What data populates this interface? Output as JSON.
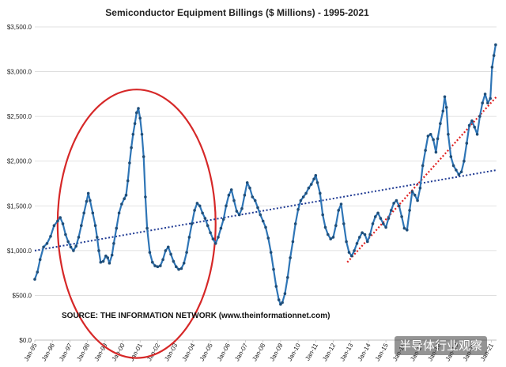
{
  "chart_data": {
    "type": "line",
    "title": "Semiconductor Equipment Billings ($ Millions) - 1995-2021",
    "source_note": "SOURCE: THE INFORMATION NETWORK (www.theinformationnet.com)",
    "watermark": "半导体行业观察",
    "ylim": [
      0,
      3500
    ],
    "y_ticks": [
      "$0.0",
      "$500.0",
      "$1,000.0",
      "$1,500.0",
      "$2,000.0",
      "$2,500.0",
      "$3,000.0",
      "$3,500.0"
    ],
    "x_ticks": [
      "Jan-95",
      "Jan-96",
      "Jan-97",
      "Jan-98",
      "Jan-99",
      "Jan-00",
      "Jan-01",
      "Jan-02",
      "Jan-03",
      "Jan-04",
      "Jan-05",
      "Jan-06",
      "Jan-07",
      "Jan-08",
      "Jan-09",
      "Jan-10",
      "Jan-11",
      "Jan-12",
      "Jan-13",
      "Jan-14",
      "Jan-15",
      "Jan-16",
      "Jan-17",
      "Jan-18",
      "Jan-19",
      "Jan-20",
      "Jan-21"
    ],
    "x_range": [
      1995.0,
      2021.3
    ],
    "grid": "horizontal",
    "colors": {
      "series": "#2e75b6",
      "marker": "#1f4e79",
      "trend_overall": "#1f3a93",
      "trend_recent": "#e02020",
      "highlight": "#d62828"
    },
    "series": [
      {
        "points": [
          [
            1995.0,
            680
          ],
          [
            1995.15,
            760
          ],
          [
            1995.3,
            900
          ],
          [
            1995.5,
            1040
          ],
          [
            1995.7,
            1080
          ],
          [
            1995.9,
            1160
          ],
          [
            1996.1,
            1280
          ],
          [
            1996.3,
            1330
          ],
          [
            1996.45,
            1370
          ],
          [
            1996.6,
            1300
          ],
          [
            1996.75,
            1180
          ],
          [
            1996.9,
            1100
          ],
          [
            1997.05,
            1040
          ],
          [
            1997.2,
            1000
          ],
          [
            1997.35,
            1050
          ],
          [
            1997.5,
            1150
          ],
          [
            1997.65,
            1280
          ],
          [
            1997.8,
            1420
          ],
          [
            1997.95,
            1550
          ],
          [
            1998.05,
            1640
          ],
          [
            1998.15,
            1560
          ],
          [
            1998.3,
            1420
          ],
          [
            1998.45,
            1280
          ],
          [
            1998.55,
            1150
          ],
          [
            1998.65,
            1000
          ],
          [
            1998.75,
            870
          ],
          [
            1998.9,
            880
          ],
          [
            1999.05,
            940
          ],
          [
            1999.15,
            920
          ],
          [
            1999.25,
            860
          ],
          [
            1999.4,
            950
          ],
          [
            1999.5,
            1080
          ],
          [
            1999.65,
            1250
          ],
          [
            1999.8,
            1420
          ],
          [
            1999.95,
            1520
          ],
          [
            2000.1,
            1580
          ],
          [
            2000.2,
            1620
          ],
          [
            2000.3,
            1780
          ],
          [
            2000.4,
            1980
          ],
          [
            2000.5,
            2150
          ],
          [
            2000.6,
            2300
          ],
          [
            2000.7,
            2420
          ],
          [
            2000.8,
            2540
          ],
          [
            2000.9,
            2590
          ],
          [
            2001.0,
            2480
          ],
          [
            2001.1,
            2300
          ],
          [
            2001.2,
            2050
          ],
          [
            2001.3,
            1600
          ],
          [
            2001.4,
            1250
          ],
          [
            2001.55,
            980
          ],
          [
            2001.7,
            870
          ],
          [
            2001.85,
            830
          ],
          [
            2002.0,
            820
          ],
          [
            2002.15,
            830
          ],
          [
            2002.3,
            900
          ],
          [
            2002.45,
            1000
          ],
          [
            2002.6,
            1040
          ],
          [
            2002.75,
            960
          ],
          [
            2002.9,
            880
          ],
          [
            2003.05,
            820
          ],
          [
            2003.2,
            790
          ],
          [
            2003.35,
            800
          ],
          [
            2003.5,
            860
          ],
          [
            2003.65,
            980
          ],
          [
            2003.8,
            1150
          ],
          [
            2003.95,
            1300
          ],
          [
            2004.1,
            1450
          ],
          [
            2004.25,
            1530
          ],
          [
            2004.4,
            1500
          ],
          [
            2004.55,
            1420
          ],
          [
            2004.7,
            1360
          ],
          [
            2004.85,
            1280
          ],
          [
            2005.0,
            1200
          ],
          [
            2005.15,
            1130
          ],
          [
            2005.3,
            1080
          ],
          [
            2005.45,
            1150
          ],
          [
            2005.6,
            1250
          ],
          [
            2005.75,
            1350
          ],
          [
            2005.9,
            1500
          ],
          [
            2006.05,
            1620
          ],
          [
            2006.2,
            1680
          ],
          [
            2006.35,
            1560
          ],
          [
            2006.5,
            1440
          ],
          [
            2006.65,
            1400
          ],
          [
            2006.8,
            1470
          ],
          [
            2006.95,
            1620
          ],
          [
            2007.1,
            1760
          ],
          [
            2007.25,
            1700
          ],
          [
            2007.4,
            1600
          ],
          [
            2007.55,
            1560
          ],
          [
            2007.7,
            1480
          ],
          [
            2007.85,
            1400
          ],
          [
            2008.0,
            1330
          ],
          [
            2008.15,
            1260
          ],
          [
            2008.3,
            1140
          ],
          [
            2008.45,
            980
          ],
          [
            2008.6,
            790
          ],
          [
            2008.75,
            600
          ],
          [
            2008.9,
            450
          ],
          [
            2009.0,
            400
          ],
          [
            2009.1,
            420
          ],
          [
            2009.25,
            520
          ],
          [
            2009.4,
            700
          ],
          [
            2009.55,
            920
          ],
          [
            2009.7,
            1100
          ],
          [
            2009.85,
            1300
          ],
          [
            2010.0,
            1460
          ],
          [
            2010.15,
            1560
          ],
          [
            2010.3,
            1600
          ],
          [
            2010.45,
            1640
          ],
          [
            2010.6,
            1700
          ],
          [
            2010.75,
            1740
          ],
          [
            2010.9,
            1800
          ],
          [
            2011.0,
            1840
          ],
          [
            2011.1,
            1760
          ],
          [
            2011.25,
            1640
          ],
          [
            2011.4,
            1400
          ],
          [
            2011.55,
            1260
          ],
          [
            2011.7,
            1180
          ],
          [
            2011.85,
            1130
          ],
          [
            2012.0,
            1150
          ],
          [
            2012.15,
            1280
          ],
          [
            2012.3,
            1450
          ],
          [
            2012.45,
            1520
          ],
          [
            2012.6,
            1300
          ],
          [
            2012.75,
            1100
          ],
          [
            2012.9,
            980
          ],
          [
            2013.05,
            940
          ],
          [
            2013.2,
            1000
          ],
          [
            2013.35,
            1080
          ],
          [
            2013.5,
            1150
          ],
          [
            2013.65,
            1200
          ],
          [
            2013.8,
            1180
          ],
          [
            2013.95,
            1100
          ],
          [
            2014.1,
            1180
          ],
          [
            2014.25,
            1300
          ],
          [
            2014.4,
            1380
          ],
          [
            2014.55,
            1420
          ],
          [
            2014.7,
            1360
          ],
          [
            2014.85,
            1300
          ],
          [
            2015.0,
            1260
          ],
          [
            2015.15,
            1360
          ],
          [
            2015.3,
            1450
          ],
          [
            2015.45,
            1530
          ],
          [
            2015.6,
            1560
          ],
          [
            2015.75,
            1500
          ],
          [
            2015.9,
            1380
          ],
          [
            2016.05,
            1250
          ],
          [
            2016.2,
            1230
          ],
          [
            2016.35,
            1450
          ],
          [
            2016.5,
            1660
          ],
          [
            2016.65,
            1620
          ],
          [
            2016.8,
            1560
          ],
          [
            2016.95,
            1700
          ],
          [
            2017.1,
            1950
          ],
          [
            2017.25,
            2120
          ],
          [
            2017.4,
            2280
          ],
          [
            2017.55,
            2300
          ],
          [
            2017.7,
            2240
          ],
          [
            2017.85,
            2100
          ],
          [
            2017.95,
            2250
          ],
          [
            2018.1,
            2420
          ],
          [
            2018.25,
            2560
          ],
          [
            2018.35,
            2720
          ],
          [
            2018.45,
            2600
          ],
          [
            2018.55,
            2300
          ],
          [
            2018.7,
            2050
          ],
          [
            2018.85,
            1950
          ],
          [
            2019.0,
            1900
          ],
          [
            2019.15,
            1850
          ],
          [
            2019.3,
            1880
          ],
          [
            2019.45,
            2000
          ],
          [
            2019.6,
            2200
          ],
          [
            2019.75,
            2400
          ],
          [
            2019.9,
            2450
          ],
          [
            2020.05,
            2380
          ],
          [
            2020.2,
            2300
          ],
          [
            2020.35,
            2500
          ],
          [
            2020.5,
            2650
          ],
          [
            2020.65,
            2750
          ],
          [
            2020.8,
            2650
          ],
          [
            2020.95,
            2700
          ],
          [
            2021.05,
            3050
          ],
          [
            2021.15,
            3180
          ],
          [
            2021.25,
            3300
          ]
        ]
      }
    ],
    "trend_overall": {
      "from": [
        1995.0,
        1000
      ],
      "to": [
        2021.3,
        1900
      ]
    },
    "trend_recent": {
      "from": [
        2012.8,
        870
      ],
      "to": [
        2021.3,
        2720
      ]
    },
    "highlight_ellipse": {
      "center": [
        2000.8,
        1300
      ],
      "rx_years": 4.5,
      "ry_value": 1500
    }
  }
}
